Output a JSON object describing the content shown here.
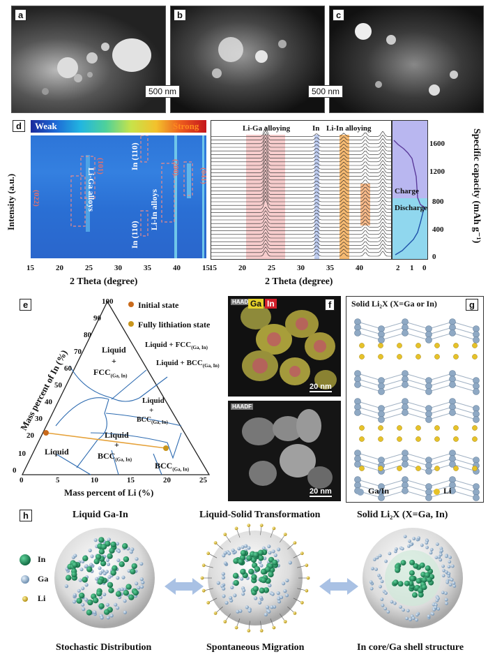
{
  "panels": {
    "a": {
      "label": "a"
    },
    "b": {
      "label": "b",
      "scale": "500 nm"
    },
    "c": {
      "label": "c",
      "scale": "500 nm"
    },
    "d": {
      "label": "d",
      "weak": "Weak",
      "strong": "Strong",
      "ylabel": "Intensity (a.u.)",
      "xlabel": "2 Theta (degree)",
      "xticks": [
        "15",
        "20",
        "25",
        "30",
        "35",
        "40",
        "15"
      ],
      "annot": {
        "p022": "(022)",
        "p101": "(101)",
        "li_ga": "Li-Ga alloys",
        "in110a": "In (110)",
        "in110b": "In (110)",
        "p200": "(200)",
        "li_in": "Li-In alloys",
        "p041": "(041)"
      },
      "mid_labels": {
        "ga": "Li-Ga alloying",
        "in": "In",
        "li_in": "Li-In alloying"
      },
      "mid_xticks": [
        "15",
        "20",
        "25",
        "30",
        "35",
        "40"
      ],
      "mid_xlabel": "2 Theta (degree)",
      "cap_yticks": [
        "1600",
        "1200",
        "800",
        "400",
        "0"
      ],
      "cap_xticks": [
        "2",
        "1",
        "0"
      ],
      "cap_ylabel": "Specific capacity (mAh g⁻¹)",
      "charge": "Charge",
      "discharge": "Discharge"
    },
    "e": {
      "label": "e",
      "legend_initial": "Initial state",
      "legend_full": "Fully lithiation state",
      "ylabel": "Mass percent of In (%)",
      "xlabel": "Mass percent of Li (%)",
      "yticks": [
        "100",
        "90",
        "80",
        "70",
        "60",
        "50",
        "40",
        "30",
        "20",
        "10",
        "0"
      ],
      "xticks": [
        "0",
        "5",
        "10",
        "15",
        "20",
        "25"
      ],
      "regions": {
        "liq_fcc": "Liquid",
        "plus1": "+",
        "fcc": "FCC",
        "fcc_sub": "(Ga, In)",
        "liq_fcc2": "Liquid + FCC",
        "liq_fcc2_sub": "(Ga, In)",
        "liq_bcc2": "Liquid + BCC",
        "liq_bcc2_sub": "(Ga, In)",
        "liq_bcc": "Liquid",
        "plus2": "+",
        "bcc": "BCC",
        "bcc_sub": "(Ga, In)",
        "liq_bcc3": "Liquid",
        "plus3": "+",
        "bcc3": "BCC",
        "bcc3_sub": "(Ga, In)",
        "liquid": "Liquid",
        "bcc4": "BCC",
        "bcc4_sub": "(Ga, In)"
      }
    },
    "f": {
      "label": "f",
      "ga": "Ga",
      "in": "In",
      "haadf": "HAADF",
      "scale": "20 nm"
    },
    "g": {
      "label": "g",
      "title": "Solid Li₂X (X=Ga or In)",
      "legend_gain": "Ga/In",
      "legend_li": "Li"
    },
    "h": {
      "label": "h",
      "titles": [
        "Liquid Ga-In",
        "Liquid-Solid Transformation",
        "Solid Li₂X (X=Ga, In)"
      ],
      "captions": [
        "Stochastic Distribution",
        "Spontaneous Migration",
        "In core/Ga shell structure"
      ],
      "legend": {
        "in": "In",
        "ga": "Ga",
        "li": "Li"
      }
    }
  },
  "colors": {
    "in": "#1f8a5e",
    "ga": "#9bb8d3",
    "li": "#e6c229",
    "initial": "#c96a1b",
    "full": "#c9951b",
    "line": "#2c6ab0"
  }
}
